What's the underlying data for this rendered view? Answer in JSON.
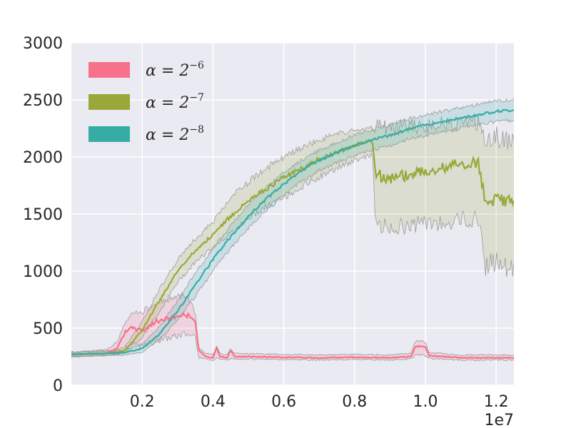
{
  "chart_data": {
    "type": "line",
    "title": "",
    "xlabel": "",
    "ylabel": "",
    "x_multiplier_label": "1e7",
    "xlim": [
      0,
      1.25
    ],
    "ylim": [
      0,
      3000
    ],
    "x_ticks": [
      0.2,
      0.4,
      0.6,
      0.8,
      1.0,
      1.2
    ],
    "x_tick_labels": [
      "0.2",
      "0.4",
      "0.6",
      "0.8",
      "1.0",
      "1.2"
    ],
    "y_ticks": [
      0,
      500,
      1000,
      1500,
      2000,
      2500,
      3000
    ],
    "y_tick_labels": [
      "0",
      "500",
      "1000",
      "1500",
      "2000",
      "2500",
      "3000"
    ],
    "grid": true,
    "legend_position": "top-left",
    "background_color": "#eaeaf2",
    "series": [
      {
        "name": "α = 2⁻⁶",
        "legend_label": "α = 2",
        "legend_exponent": "−6",
        "color": "#f7718a",
        "x": [
          0.0,
          0.1,
          0.13,
          0.15,
          0.17,
          0.2,
          0.24,
          0.28,
          0.32,
          0.34,
          0.35,
          0.36,
          0.38,
          0.4,
          0.41,
          0.42,
          0.43,
          0.44,
          0.45,
          0.46,
          0.5,
          0.6,
          0.7,
          0.8,
          0.9,
          0.96,
          0.97,
          0.98,
          1.0,
          1.01,
          1.1,
          1.25
        ],
        "values": [
          270,
          280,
          330,
          460,
          500,
          480,
          560,
          590,
          620,
          600,
          560,
          300,
          250,
          240,
          330,
          250,
          245,
          240,
          310,
          250,
          250,
          245,
          240,
          245,
          240,
          250,
          330,
          340,
          330,
          260,
          240,
          240
        ],
        "upper": [
          290,
          310,
          380,
          540,
          620,
          640,
          720,
          760,
          800,
          720,
          640,
          320,
          280,
          270,
          340,
          280,
          270,
          270,
          320,
          280,
          275,
          270,
          265,
          270,
          265,
          280,
          370,
          390,
          380,
          285,
          265,
          265
        ],
        "lower": [
          250,
          260,
          285,
          320,
          360,
          340,
          390,
          420,
          450,
          440,
          420,
          240,
          230,
          220,
          240,
          230,
          225,
          220,
          230,
          230,
          230,
          225,
          220,
          225,
          220,
          230,
          260,
          270,
          260,
          235,
          220,
          220
        ]
      },
      {
        "name": "α = 2⁻⁷",
        "legend_label": "α = 2",
        "legend_exponent": "−7",
        "color": "#9aa83a",
        "x": [
          0.0,
          0.1,
          0.15,
          0.2,
          0.25,
          0.3,
          0.35,
          0.4,
          0.45,
          0.5,
          0.55,
          0.6,
          0.65,
          0.7,
          0.75,
          0.8,
          0.85,
          0.86,
          0.9,
          0.95,
          1.0,
          1.05,
          1.1,
          1.15,
          1.17,
          1.2,
          1.25
        ],
        "values": [
          270,
          280,
          300,
          480,
          750,
          1000,
          1180,
          1320,
          1480,
          1620,
          1720,
          1820,
          1900,
          1980,
          2040,
          2100,
          2150,
          1850,
          1800,
          1850,
          1880,
          1900,
          1940,
          1950,
          1620,
          1640,
          1580
        ],
        "upper": [
          290,
          300,
          330,
          560,
          850,
          1100,
          1280,
          1430,
          1640,
          1780,
          1900,
          1990,
          2080,
          2150,
          2200,
          2230,
          2250,
          2260,
          2260,
          2270,
          2270,
          2280,
          2290,
          2300,
          2170,
          2180,
          2130
        ],
        "lower": [
          250,
          260,
          280,
          420,
          650,
          900,
          1080,
          1210,
          1330,
          1460,
          1560,
          1640,
          1740,
          1820,
          1900,
          1970,
          2020,
          1400,
          1380,
          1400,
          1420,
          1430,
          1450,
          1460,
          1050,
          1080,
          1020
        ]
      },
      {
        "name": "α = 2⁻⁸",
        "legend_label": "α = 2",
        "legend_exponent": "−8",
        "color": "#36ada4",
        "x": [
          0.0,
          0.1,
          0.15,
          0.2,
          0.25,
          0.3,
          0.35,
          0.4,
          0.45,
          0.5,
          0.55,
          0.6,
          0.65,
          0.7,
          0.75,
          0.8,
          0.85,
          0.9,
          0.95,
          1.0,
          1.05,
          1.1,
          1.15,
          1.2,
          1.25
        ],
        "values": [
          270,
          280,
          285,
          320,
          450,
          650,
          880,
          1100,
          1300,
          1480,
          1630,
          1760,
          1880,
          1970,
          2040,
          2100,
          2150,
          2190,
          2240,
          2280,
          2310,
          2340,
          2370,
          2400,
          2410
        ],
        "upper": [
          290,
          300,
          305,
          360,
          520,
          740,
          980,
          1200,
          1400,
          1580,
          1730,
          1860,
          1970,
          2060,
          2130,
          2190,
          2240,
          2280,
          2330,
          2370,
          2400,
          2430,
          2460,
          2490,
          2500
        ],
        "lower": [
          250,
          260,
          265,
          290,
          400,
          570,
          780,
          1000,
          1200,
          1380,
          1530,
          1660,
          1790,
          1880,
          1950,
          2010,
          2060,
          2100,
          2150,
          2190,
          2220,
          2250,
          2280,
          2310,
          2320
        ]
      }
    ]
  }
}
